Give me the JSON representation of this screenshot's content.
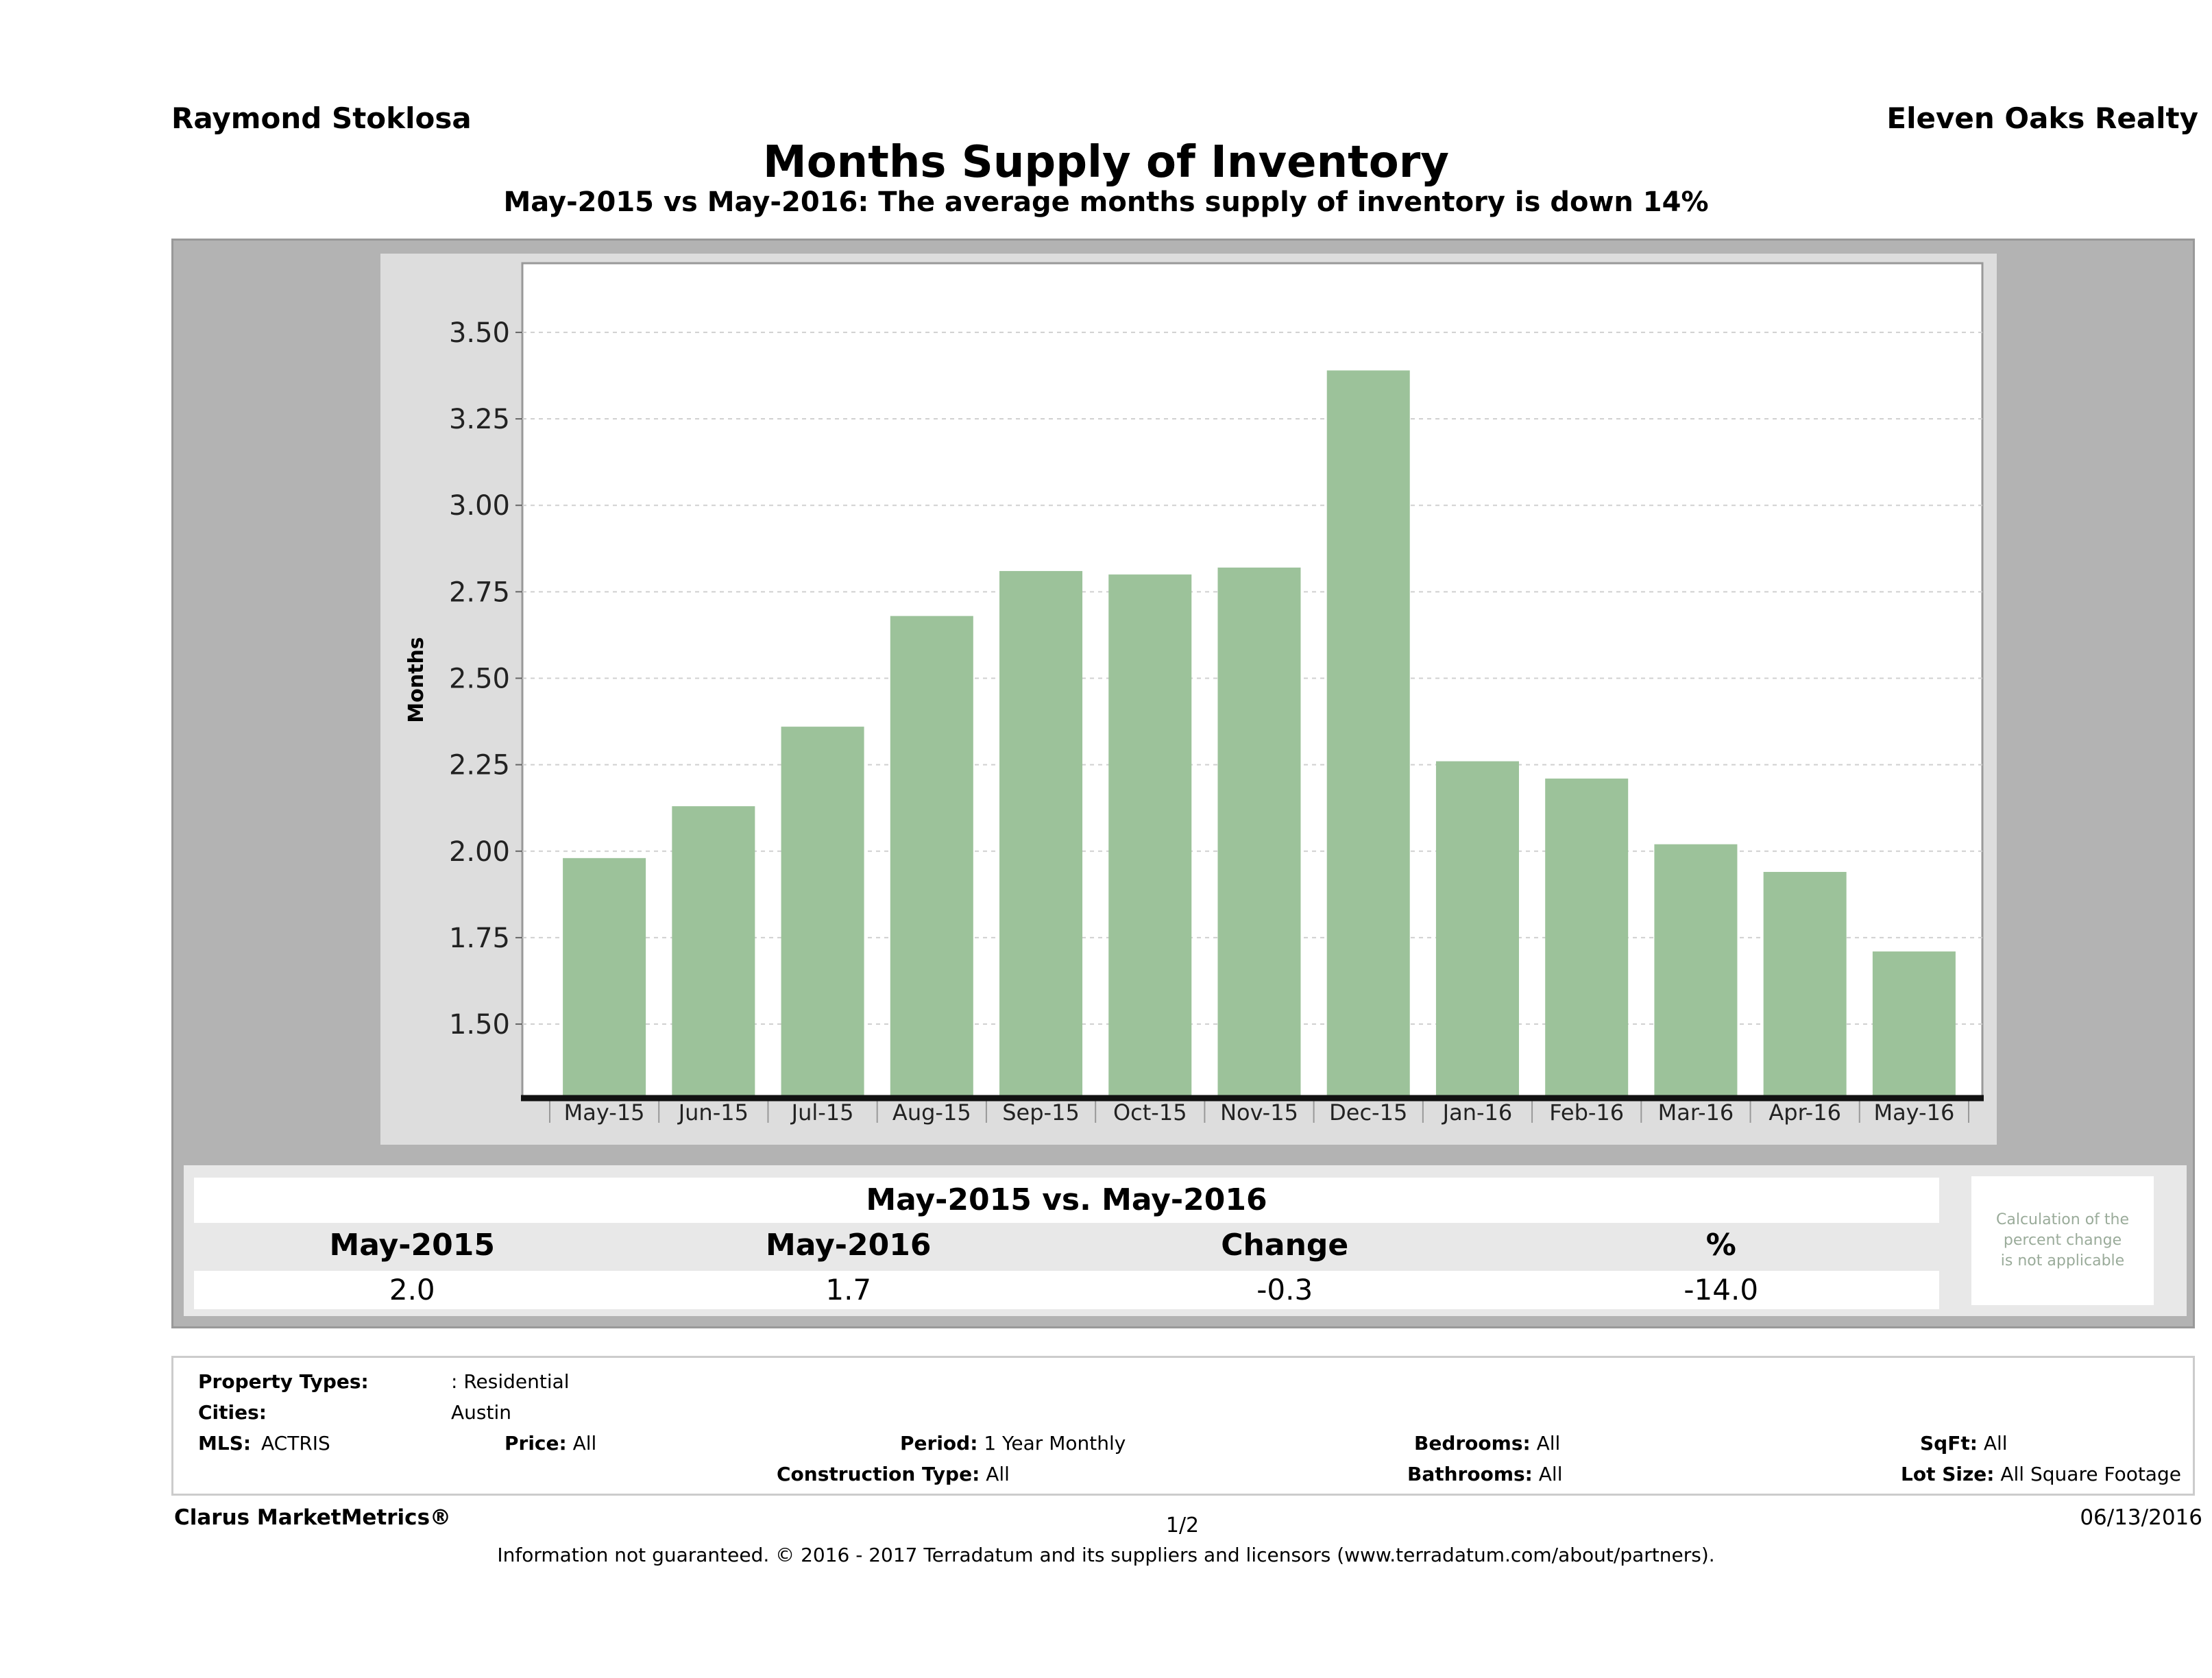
{
  "header": {
    "agent": "Raymond Stoklosa",
    "brokerage": "Eleven Oaks Realty",
    "title": "Months Supply of Inventory",
    "subtitle": "May-2015 vs May-2016: The average months supply of inventory is down 14%"
  },
  "chart_data": {
    "type": "bar",
    "title": "Months Supply of Inventory",
    "xlabel": "",
    "ylabel": "Months",
    "categories": [
      "May-15",
      "Jun-15",
      "Jul-15",
      "Aug-15",
      "Sep-15",
      "Oct-15",
      "Nov-15",
      "Dec-15",
      "Jan-16",
      "Feb-16",
      "Mar-16",
      "Apr-16",
      "May-16"
    ],
    "values": [
      1.98,
      2.13,
      2.36,
      2.68,
      2.81,
      2.8,
      2.82,
      3.39,
      2.26,
      2.21,
      2.02,
      1.94,
      1.71
    ],
    "yticks": [
      "1.50",
      "1.75",
      "2.00",
      "2.25",
      "2.50",
      "2.75",
      "3.00",
      "3.25",
      "3.50"
    ],
    "ylim": [
      1.29,
      3.7
    ],
    "grid": true,
    "bar_color": "#9cc29a",
    "legend": "none"
  },
  "summary": {
    "title": "May-2015 vs. May-2016",
    "headers": [
      "May-2015",
      "May-2016",
      "Change",
      "%"
    ],
    "values": [
      "2.0",
      "1.7",
      "-0.3",
      "-14.0"
    ],
    "note_line1": "Calculation of the",
    "note_line2": "percent change",
    "note_line3": "is not applicable"
  },
  "criteria": {
    "property_types_label": "Property Types:",
    "property_types_value": ": Residential",
    "cities_label": "Cities:",
    "cities_value": "Austin",
    "mls_label": "MLS:",
    "mls_value": "ACTRIS",
    "price_label": "Price:",
    "price_value": "All",
    "period_label": "Period:",
    "period_value": "1 Year Monthly",
    "construction_label": "Construction Type:",
    "construction_value": "All",
    "bedrooms_label": "Bedrooms:",
    "bedrooms_value": "All",
    "bathrooms_label": "Bathrooms:",
    "bathrooms_value": "All",
    "sqft_label": "SqFt:",
    "sqft_value": "All",
    "lotsize_label": "Lot Size:",
    "lotsize_value": "All Square Footage"
  },
  "footer": {
    "brand": "Clarus MarketMetrics®",
    "page": "1/2",
    "date": "06/13/2016",
    "disclaimer": "Information not guaranteed. © 2016 - 2017 Terradatum and its suppliers and licensors (www.terradatum.com/about/partners)."
  }
}
